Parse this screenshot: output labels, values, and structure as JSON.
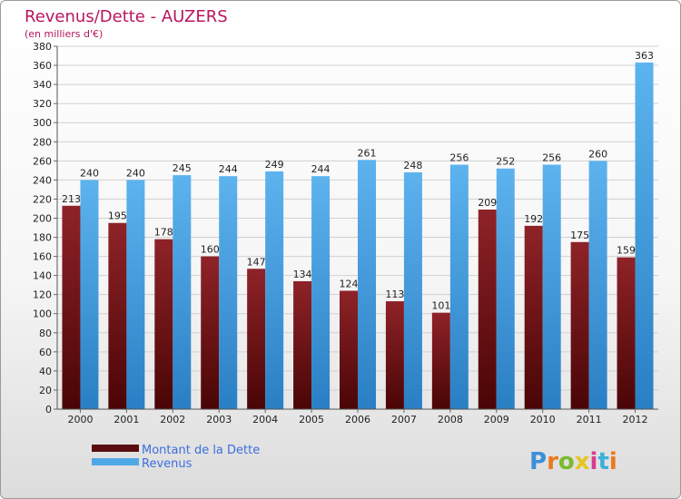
{
  "chart_data": {
    "type": "bar",
    "title": "Revenus/Dette - AUZERS",
    "subtitle": "(en milliers d'€)",
    "categories": [
      "2000",
      "2001",
      "2002",
      "2003",
      "2004",
      "2005",
      "2006",
      "2007",
      "2008",
      "2009",
      "2010",
      "2011",
      "2012"
    ],
    "series": [
      {
        "name": "Montant de la Dette",
        "color": "#7a1a1e",
        "values": [
          213,
          195,
          178,
          160,
          147,
          134,
          124,
          113,
          101,
          209,
          192,
          175,
          159
        ]
      },
      {
        "name": "Revenus",
        "color": "#4fa8e6",
        "values": [
          240,
          240,
          245,
          244,
          249,
          244,
          261,
          248,
          256,
          252,
          256,
          260,
          363
        ]
      }
    ],
    "ylim": [
      0,
      380
    ],
    "yticks": [
      0,
      20,
      40,
      60,
      80,
      100,
      120,
      140,
      160,
      180,
      200,
      220,
      240,
      260,
      280,
      300,
      320,
      340,
      360,
      380
    ],
    "grid": true,
    "legend": "bottom-left"
  },
  "logo": {
    "letters": [
      "P",
      "r",
      "o",
      "x",
      "i",
      "t",
      "i"
    ],
    "colors": [
      "#3b8fd9",
      "#e87a1e",
      "#7cba2a",
      "#e8c51e",
      "#d93b8f",
      "#3bb0d9",
      "#e87a1e"
    ]
  }
}
